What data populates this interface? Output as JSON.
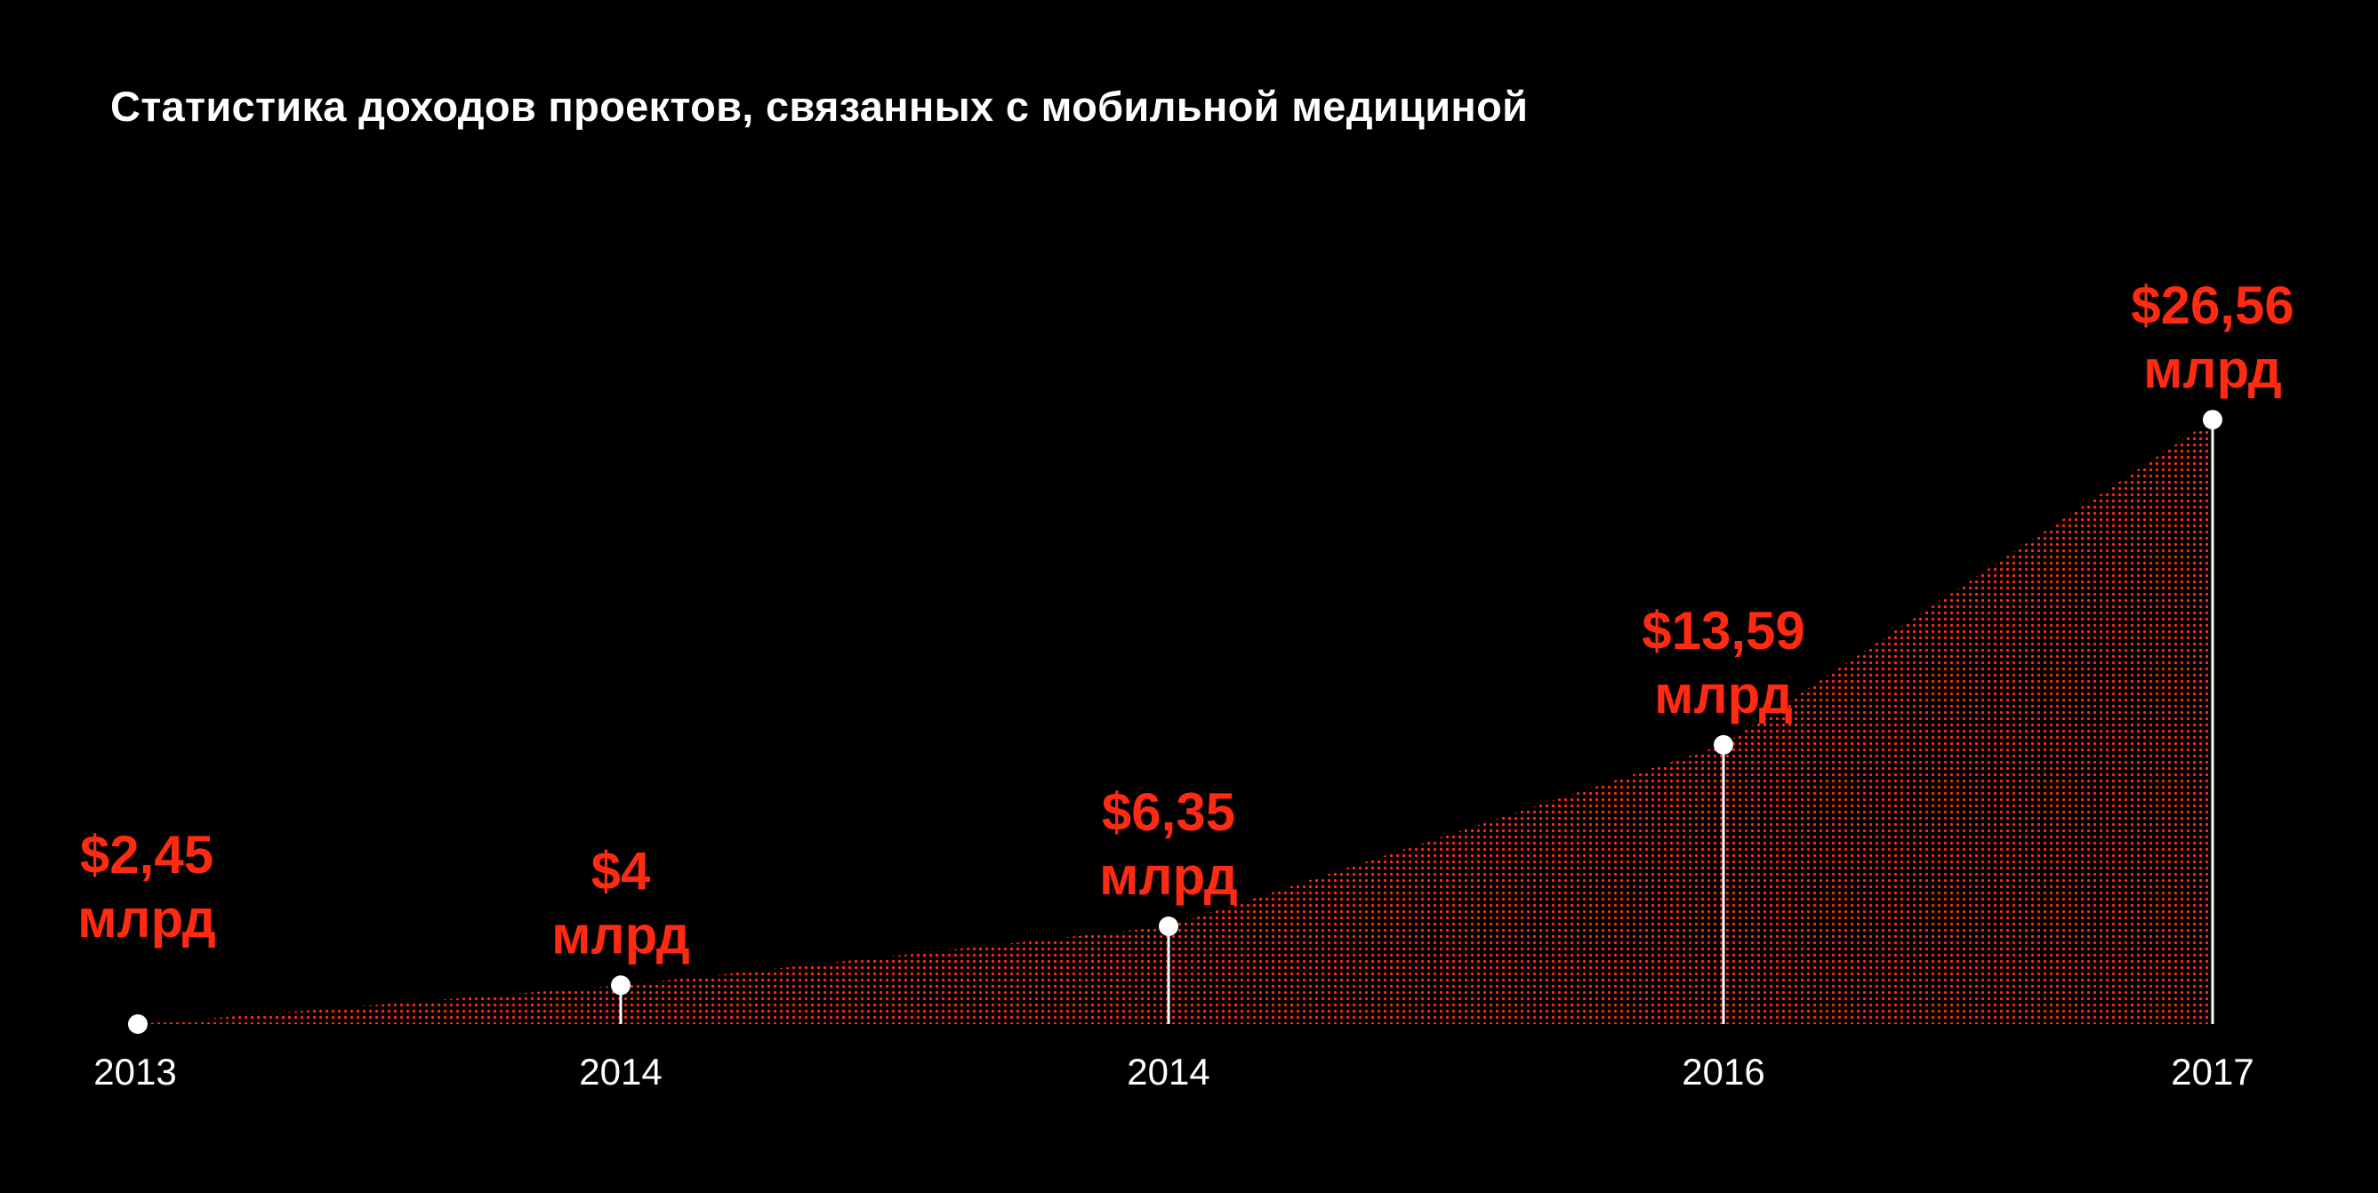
{
  "chart_data": {
    "type": "area",
    "title": "Статистика доходов проектов, связанных с мобильной медициной",
    "xlabel": "",
    "ylabel": "",
    "categories": [
      "2013",
      "2014",
      "2014",
      "2016",
      "2017"
    ],
    "values": [
      2.45,
      4,
      6.35,
      13.59,
      26.56
    ],
    "value_labels": [
      "$2,45",
      "$4",
      "$6,35",
      "$13,59",
      "$26,56"
    ],
    "unit_label": "млрд",
    "grid": false,
    "legend": "none",
    "colors": {
      "background": "#000000",
      "area_fill": "#ff2a12",
      "labels": "#ff2a12",
      "markers": "#ffffff",
      "text": "#ffffff"
    }
  }
}
